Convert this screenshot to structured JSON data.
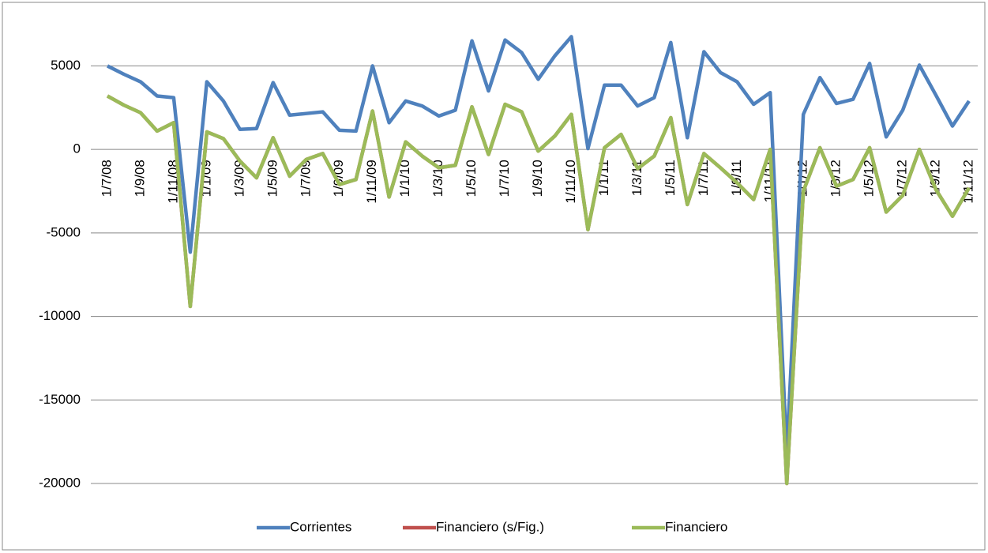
{
  "chart_data": {
    "type": "line",
    "categories": [
      "1/7/08",
      null,
      "1/9/08",
      null,
      "1/11/08",
      null,
      "1/1/09",
      null,
      "1/3/09",
      null,
      "1/5/09",
      null,
      "1/7/09",
      null,
      "1/9/09",
      null,
      "1/11/09",
      null,
      "1/1/10",
      null,
      "1/3/10",
      null,
      "1/5/10",
      null,
      "1/7/10",
      null,
      "1/9/10",
      null,
      "1/11/10",
      null,
      "1/1/11",
      null,
      "1/3/11",
      null,
      "1/5/11",
      null,
      "1/7/11",
      null,
      "1/9/11",
      null,
      "1/11/11",
      null,
      "1/1/12",
      null,
      "1/3/12",
      null,
      "1/5/12",
      null,
      "1/7/12",
      null,
      "1/9/12",
      null,
      "1/11/12"
    ],
    "series": [
      {
        "name": "Corrientes",
        "color": "#4f81bd",
        "values": [
          5000,
          4500,
          4050,
          3200,
          3100,
          -6150,
          4050,
          2900,
          1200,
          1250,
          4000,
          2050,
          2150,
          2250,
          1150,
          1100,
          5000,
          1600,
          2900,
          2600,
          2000,
          2350,
          6500,
          3500,
          6550,
          5800,
          4200,
          5600,
          6750,
          50,
          3850,
          3850,
          2600,
          3100,
          6400,
          700,
          5850,
          4600,
          4050,
          2700,
          3400,
          -18200,
          2100,
          4300,
          2750,
          3000,
          5150,
          750,
          2350,
          5050,
          3250,
          1400,
          2900
        ]
      },
      {
        "name": "Financiero (s/Fig.)",
        "color": "#c0504d",
        "values": [
          3200,
          2650,
          2200,
          1100,
          1600,
          -9400,
          1050,
          650,
          -700,
          -1700,
          700,
          -1600,
          -600,
          -250,
          -2100,
          -1800,
          2300,
          -2850,
          450,
          -400,
          -1100,
          -950,
          2550,
          -300,
          2700,
          2250,
          -100,
          800,
          2100,
          -4800,
          100,
          900,
          -1150,
          -400,
          1900,
          -3300,
          -250,
          -1100,
          -2000,
          -3000,
          0,
          -20000,
          -2500,
          100,
          -2200,
          -1800,
          100,
          -3750,
          -2750,
          0,
          -2400,
          -4000,
          -2300
        ]
      },
      {
        "name": "Financiero",
        "color": "#9bbb59",
        "values": [
          3200,
          2650,
          2200,
          1100,
          1600,
          -9400,
          1050,
          650,
          -700,
          -1700,
          700,
          -1600,
          -600,
          -250,
          -2100,
          -1800,
          2300,
          -2850,
          450,
          -400,
          -1100,
          -950,
          2550,
          -300,
          2700,
          2250,
          -100,
          800,
          2100,
          -4800,
          100,
          900,
          -1150,
          -400,
          1900,
          -3300,
          -250,
          -1100,
          -2000,
          -3000,
          0,
          -20000,
          -2500,
          100,
          -2200,
          -1800,
          100,
          -3750,
          -2750,
          0,
          -2400,
          -4000,
          -2300
        ]
      }
    ],
    "ylim": [
      -20000,
      8000
    ],
    "yticks": [
      -20000,
      -15000,
      -10000,
      -5000,
      0,
      5000
    ],
    "grid": true,
    "legend": "bottom"
  }
}
